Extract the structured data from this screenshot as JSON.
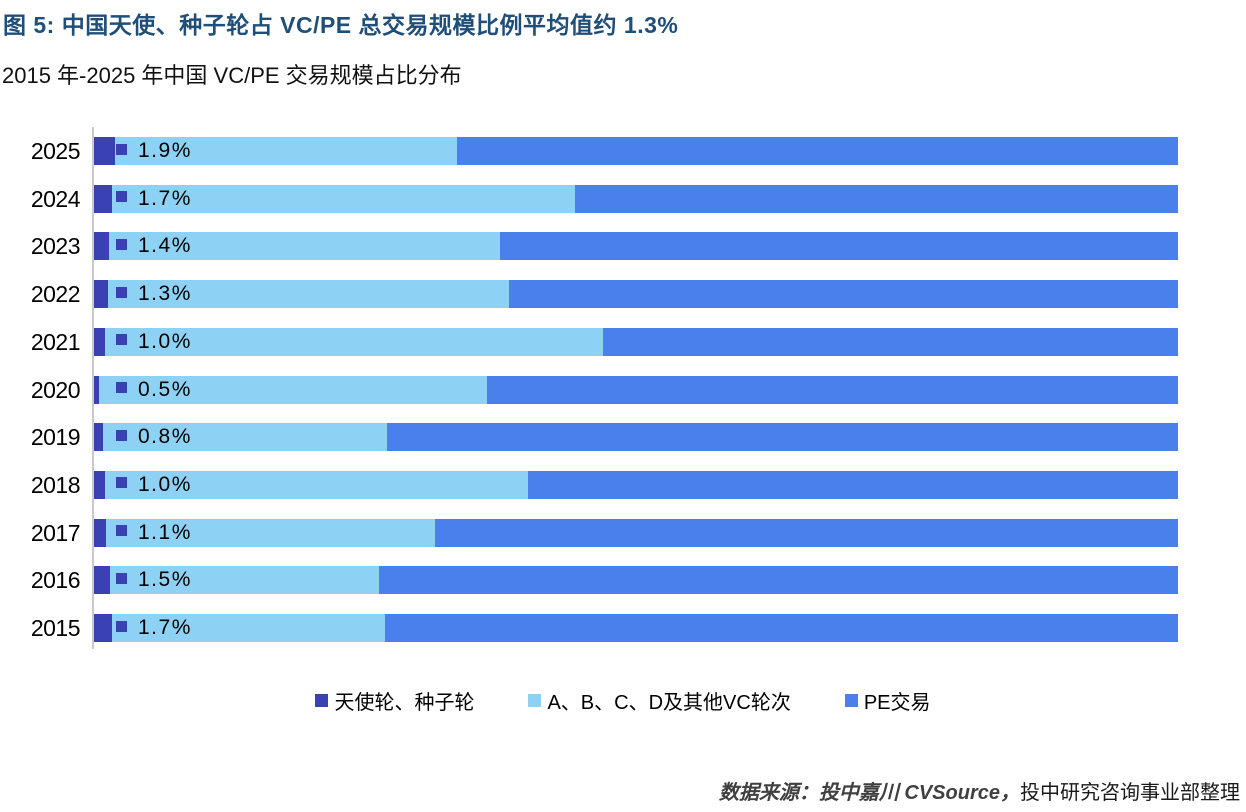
{
  "header": {
    "title": "图 5: 中国天使、种子轮占 VC/PE 总交易规模比例平均值约 1.3%",
    "subtitle": "2015 年-2025 年中国 VC/PE 交易规模占比分布"
  },
  "source": {
    "italic_part": "数据来源：投中嘉川 CVSource，",
    "normal_part": "投中研究咨询事业部整理"
  },
  "colors": {
    "title": "#1F4E79",
    "angel_seed": "#3A41B3",
    "vc_rounds": "#8DD2F4",
    "pe_deals": "#4A80EB",
    "axis_line": "#C9C9C9",
    "label_text": "#000000"
  },
  "chart_data": {
    "type": "bar",
    "orientation": "horizontal",
    "stacked": true,
    "units": "%",
    "xlim": [
      0,
      100
    ],
    "grid": false,
    "legend_position": "bottom",
    "categories": [
      "2025",
      "2024",
      "2023",
      "2022",
      "2021",
      "2020",
      "2019",
      "2018",
      "2017",
      "2016",
      "2015"
    ],
    "series": [
      {
        "name": "天使轮、种子轮",
        "color": "#3A41B3",
        "values": [
          1.9,
          1.7,
          1.4,
          1.3,
          1.0,
          0.5,
          0.8,
          1.0,
          1.1,
          1.5,
          1.7
        ]
      },
      {
        "name": "A、B、C、D及其他VC轮次",
        "color": "#8DD2F4",
        "values": [
          31.6,
          42.7,
          36.1,
          37.0,
          46.0,
          35.8,
          26.2,
          39.0,
          30.4,
          24.8,
          25.1
        ]
      },
      {
        "name": "PE交易",
        "color": "#4A80EB",
        "values": [
          66.5,
          55.6,
          62.5,
          61.7,
          53.0,
          63.7,
          73.0,
          60.0,
          68.5,
          73.7,
          73.2
        ]
      }
    ],
    "data_labels": [
      "1.9%",
      "1.7%",
      "1.4%",
      "1.3%",
      "1.0%",
      "0.5%",
      "0.8%",
      "1.0%",
      "1.1%",
      "1.5%",
      "1.7%"
    ],
    "data_labels_series": "天使轮、种子轮",
    "data_labels_show_legend_key": true
  }
}
